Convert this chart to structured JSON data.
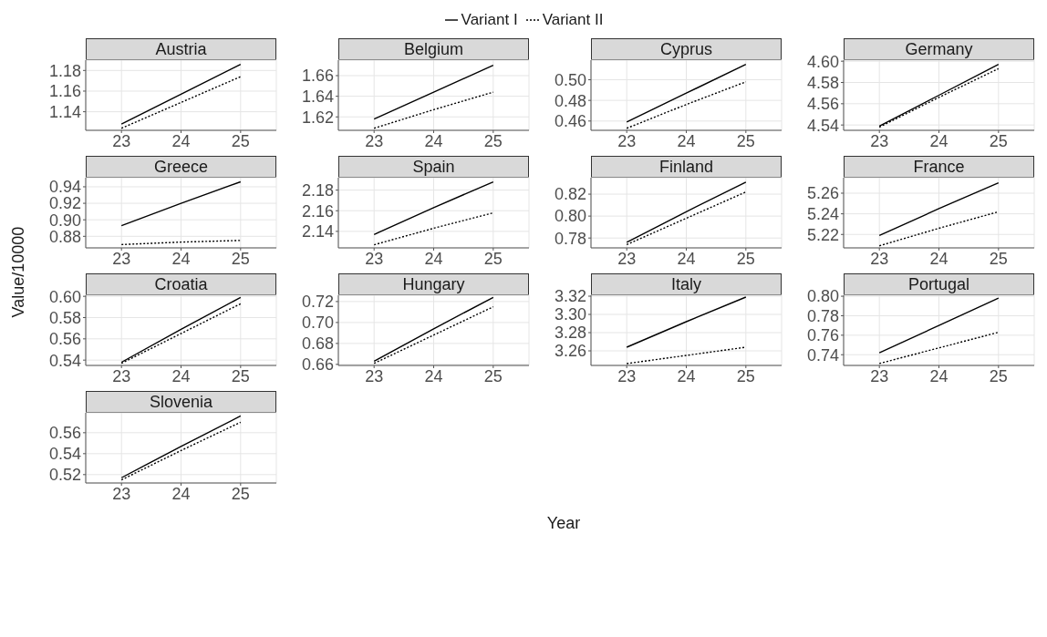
{
  "chart_data": [
    {
      "type": "line",
      "title": "Austria",
      "categories": [
        "23",
        "24",
        "25"
      ],
      "ylim": [
        1.122,
        1.19
      ],
      "yticks": [
        1.14,
        1.16,
        1.18
      ],
      "grid": true,
      "legend": "top",
      "ylabel": "Value/10000",
      "series": [
        {
          "name": "Variant I",
          "color": "#000000",
          "line_style": "solid",
          "values": [
            1.128,
            1.157,
            1.186
          ]
        },
        {
          "name": "Variant II",
          "color": "#000000",
          "line_style": "dotted",
          "values": [
            1.124,
            1.149,
            1.174
          ]
        }
      ]
    },
    {
      "type": "line",
      "title": "Belgium",
      "categories": [
        "23",
        "24",
        "25"
      ],
      "ylim": [
        1.607,
        1.675
      ],
      "yticks": [
        1.62,
        1.64,
        1.66
      ],
      "grid": true,
      "series": [
        {
          "color": "#000000",
          "line_style": "solid",
          "values": [
            1.618,
            1.644,
            1.67
          ]
        },
        {
          "color": "#000000",
          "line_style": "dotted",
          "values": [
            1.609,
            1.627,
            1.644
          ]
        }
      ]
    },
    {
      "type": "line",
      "title": "Cyprus",
      "categories": [
        "23",
        "24",
        "25"
      ],
      "ylim": [
        0.451,
        0.519
      ],
      "yticks": [
        0.46,
        0.48,
        {
          "value": 0.5,
          "label": "0.50"
        }
      ],
      "grid": true,
      "series": [
        {
          "color": "#000000",
          "line_style": "solid",
          "values": [
            0.459,
            0.487,
            0.515
          ]
        },
        {
          "color": "#000000",
          "line_style": "dotted",
          "values": [
            0.453,
            0.476,
            0.498
          ]
        }
      ]
    },
    {
      "type": "line",
      "title": "Germany",
      "categories": [
        "23",
        "24",
        "25"
      ],
      "ylim": [
        4.535,
        4.601
      ],
      "yticks": [
        4.54,
        4.56,
        4.58,
        {
          "value": 4.6,
          "label": "4.60"
        }
      ],
      "grid": true,
      "series": [
        {
          "color": "#000000",
          "line_style": "solid",
          "values": [
            4.539,
            4.568,
            4.597
          ]
        },
        {
          "color": "#000000",
          "line_style": "dotted",
          "values": [
            4.538,
            4.566,
            4.593
          ]
        }
      ]
    },
    {
      "type": "line",
      "title": "Greece",
      "categories": [
        "23",
        "24",
        "25"
      ],
      "ylim": [
        0.866,
        0.951
      ],
      "yticks": [
        0.88,
        {
          "value": 0.9,
          "label": "0.90"
        },
        0.92,
        0.94
      ],
      "grid": true,
      "series": [
        {
          "color": "#000000",
          "line_style": "solid",
          "values": [
            0.893,
            0.92,
            0.946
          ]
        },
        {
          "color": "#000000",
          "line_style": "dotted",
          "values": [
            0.87,
            0.873,
            0.875
          ]
        }
      ]
    },
    {
      "type": "line",
      "title": "Spain",
      "categories": [
        "23",
        "24",
        "25"
      ],
      "ylim": [
        2.124,
        2.192
      ],
      "yticks": [
        2.14,
        2.16,
        2.18
      ],
      "grid": true,
      "series": [
        {
          "color": "#000000",
          "line_style": "solid",
          "values": [
            2.137,
            2.163,
            2.188
          ]
        },
        {
          "color": "#000000",
          "line_style": "dotted",
          "values": [
            2.127,
            2.143,
            2.158
          ]
        }
      ]
    },
    {
      "type": "line",
      "title": "Finland",
      "categories": [
        "23",
        "24",
        "25"
      ],
      "ylim": [
        0.771,
        0.835
      ],
      "yticks": [
        0.78,
        {
          "value": 0.8,
          "label": "0.80"
        },
        0.82
      ],
      "grid": true,
      "series": [
        {
          "color": "#000000",
          "line_style": "solid",
          "values": [
            0.776,
            0.804,
            0.831
          ]
        },
        {
          "color": "#000000",
          "line_style": "dotted",
          "values": [
            0.774,
            0.798,
            0.822
          ]
        }
      ]
    },
    {
      "type": "line",
      "title": "France",
      "categories": [
        "23",
        "24",
        "25"
      ],
      "ylim": [
        5.207,
        5.275
      ],
      "yticks": [
        5.22,
        5.24,
        5.26
      ],
      "grid": true,
      "series": [
        {
          "color": "#000000",
          "line_style": "solid",
          "values": [
            5.219,
            5.245,
            5.27
          ]
        },
        {
          "color": "#000000",
          "line_style": "dotted",
          "values": [
            5.209,
            5.226,
            5.242
          ]
        }
      ]
    },
    {
      "type": "line",
      "title": "Croatia",
      "categories": [
        "23",
        "24",
        "25"
      ],
      "ylim": [
        0.535,
        0.601
      ],
      "yticks": [
        0.54,
        0.56,
        0.58,
        {
          "value": 0.6,
          "label": "0.60"
        }
      ],
      "grid": true,
      "series": [
        {
          "color": "#000000",
          "line_style": "solid",
          "values": [
            0.538,
            0.569,
            0.599
          ]
        },
        {
          "color": "#000000",
          "line_style": "dotted",
          "values": [
            0.537,
            0.565,
            0.593
          ]
        }
      ]
    },
    {
      "type": "line",
      "title": "Hungary",
      "categories": [
        "23",
        "24",
        "25"
      ],
      "ylim": [
        0.659,
        0.726
      ],
      "yticks": [
        0.66,
        0.68,
        {
          "value": 0.7,
          "label": "0.70"
        },
        0.72
      ],
      "grid": true,
      "series": [
        {
          "color": "#000000",
          "line_style": "solid",
          "values": [
            0.663,
            0.694,
            0.724
          ]
        },
        {
          "color": "#000000",
          "line_style": "dotted",
          "values": [
            0.661,
            0.688,
            0.715
          ]
        }
      ]
    },
    {
      "type": "line",
      "title": "Italy",
      "categories": [
        "23",
        "24",
        "25"
      ],
      "ylim": [
        3.244,
        3.321
      ],
      "yticks": [
        3.26,
        3.28,
        {
          "value": 3.3,
          "label": "3.30"
        },
        3.32
      ],
      "grid": true,
      "xlabel": "Year",
      "series": [
        {
          "color": "#000000",
          "line_style": "solid",
          "values": [
            3.264,
            3.292,
            3.319
          ]
        },
        {
          "color": "#000000",
          "line_style": "dotted",
          "values": [
            3.246,
            3.255,
            3.264
          ]
        }
      ]
    },
    {
      "type": "line",
      "title": "Portugal",
      "categories": [
        "23",
        "24",
        "25"
      ],
      "ylim": [
        0.729,
        0.801
      ],
      "yticks": [
        0.74,
        0.76,
        0.78,
        {
          "value": 0.8,
          "label": "0.80"
        }
      ],
      "grid": true,
      "series": [
        {
          "color": "#000000",
          "line_style": "solid",
          "values": [
            0.742,
            0.77,
            0.798
          ]
        },
        {
          "color": "#000000",
          "line_style": "dotted",
          "values": [
            0.731,
            0.747,
            0.763
          ]
        }
      ]
    },
    {
      "type": "line",
      "title": "Slovenia",
      "categories": [
        "23",
        "24",
        "25"
      ],
      "ylim": [
        0.512,
        0.579
      ],
      "yticks": [
        0.52,
        0.54,
        0.56
      ],
      "grid": true,
      "series": [
        {
          "color": "#000000",
          "line_style": "solid",
          "values": [
            0.517,
            0.547,
            0.576
          ]
        },
        {
          "color": "#000000",
          "line_style": "dotted",
          "values": [
            0.515,
            0.543,
            0.57
          ]
        }
      ]
    }
  ]
}
